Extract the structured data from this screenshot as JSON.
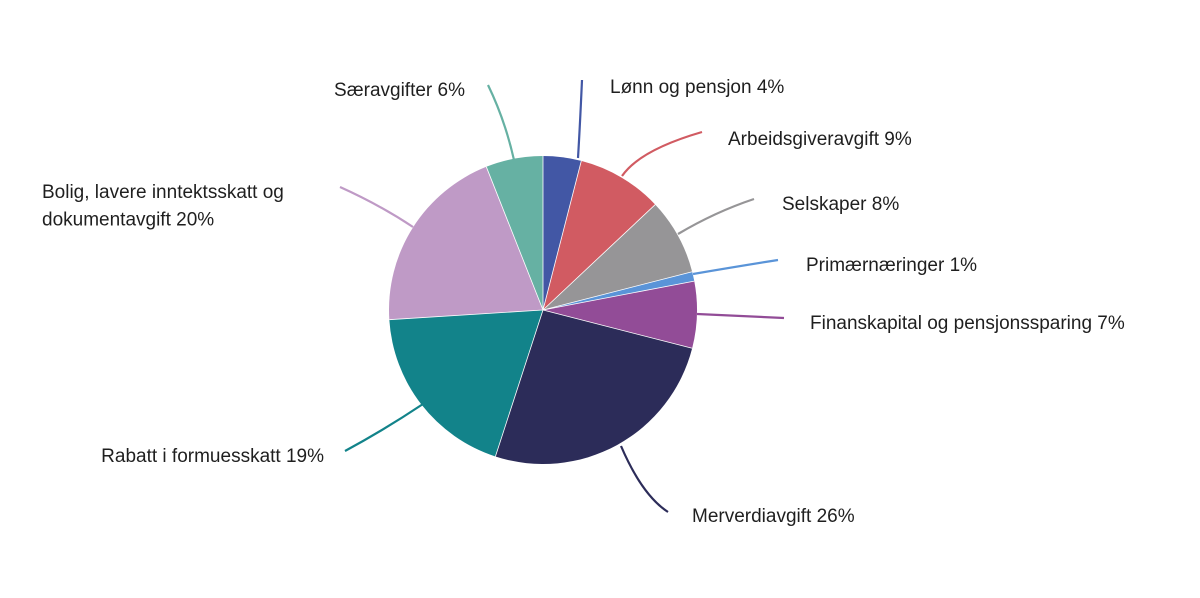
{
  "chart_data": {
    "type": "pie",
    "title": "",
    "slices": [
      {
        "label": "Lønn og pensjon 4%",
        "lines": [
          "Lønn og pensjon 4%"
        ],
        "value": 4,
        "color": "#4257a5"
      },
      {
        "label": "Arbeidsgiveravgift 9%",
        "lines": [
          "Arbeidsgiveravgift 9%"
        ],
        "value": 9,
        "color": "#d15b62"
      },
      {
        "label": "Selskaper 8%",
        "lines": [
          "Selskaper 8%"
        ],
        "value": 8,
        "color": "#969597"
      },
      {
        "label": "Primærnæringer 1%",
        "lines": [
          "Primærnæringer 1%"
        ],
        "value": 1,
        "color": "#5a94d8"
      },
      {
        "label": "Finanskapital og pensjonssparing 7%",
        "lines": [
          "Finanskapital og pensjonssparing 7%"
        ],
        "value": 7,
        "color": "#924c97"
      },
      {
        "label": "Merverdiavgift 26%",
        "lines": [
          "Merverdiavgift 26%"
        ],
        "value": 26,
        "color": "#2c2c59"
      },
      {
        "label": "Rabatt i formuesskatt 19%",
        "lines": [
          "Rabatt i formuesskatt 19%"
        ],
        "value": 19,
        "color": "#12838a"
      },
      {
        "label": "Bolig, lavere inntektsskatt og dokumentavgift 20%",
        "lines": [
          "Bolig, lavere inntektsskatt og",
          "dokumentavgift 20%"
        ],
        "value": 20,
        "color": "#bf9ac6"
      },
      {
        "label": "Særavgifter 6%",
        "lines": [
          "Særavgifter 6%"
        ],
        "value": 6,
        "color": "#66b1a3"
      }
    ]
  }
}
